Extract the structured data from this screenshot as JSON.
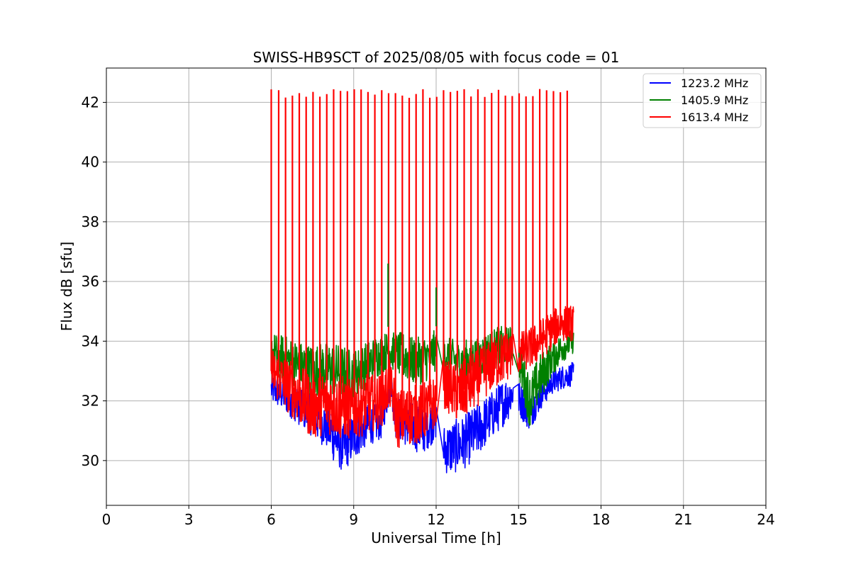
{
  "chart_data": {
    "type": "line",
    "title": "SWISS-HB9SCT of 2025/08/05 with focus code = 01",
    "xlabel": "Universal Time [h]",
    "ylabel": "Flux dB [sfu]",
    "xlim": [
      0,
      24
    ],
    "ylim": [
      28.5,
      43.15
    ],
    "xticks": [
      0,
      3,
      6,
      9,
      12,
      15,
      18,
      21,
      24
    ],
    "yticks": [
      30,
      32,
      34,
      36,
      38,
      40,
      42
    ],
    "grid": true,
    "legend_position": "top-right",
    "series": [
      {
        "name": "1223.2 MHz",
        "color": "#0000ff",
        "segments": [
          {
            "x": [
              6.0,
              6.5,
              7.0,
              7.5,
              8.0,
              8.3,
              8.6,
              9.0,
              9.5,
              10.0,
              10.3
            ],
            "mid": [
              32.4,
              32.2,
              31.8,
              31.5,
              31.2,
              30.8,
              30.4,
              30.8,
              31.2,
              31.3,
              32.4
            ],
            "noise": [
              0.5,
              0.6,
              0.6,
              0.7,
              0.8,
              0.9,
              0.8,
              0.8,
              0.7,
              0.6,
              0.5
            ]
          },
          {
            "x": [
              10.3,
              10.5,
              11.0,
              11.5,
              12.0
            ],
            "mid": [
              33.2,
              31.5,
              31.2,
              31.0,
              31.4
            ],
            "noise": [
              0.4,
              0.7,
              0.8,
              0.8,
              0.7
            ]
          },
          {
            "x": [
              12.25,
              12.5,
              13.0,
              13.5,
              14.0,
              14.5,
              14.8
            ],
            "mid": [
              30.4,
              30.4,
              30.6,
              31.0,
              31.5,
              32.0,
              32.3
            ],
            "noise": [
              0.8,
              0.9,
              0.9,
              0.9,
              0.8,
              0.8,
              0.7
            ]
          },
          {
            "x": [
              15.0,
              15.4,
              15.8,
              16.2,
              16.6,
              17.0
            ],
            "mid": [
              32.1,
              31.6,
              32.2,
              32.6,
              32.8,
              32.9
            ],
            "noise": [
              0.6,
              0.6,
              0.5,
              0.4,
              0.4,
              0.4
            ]
          }
        ]
      },
      {
        "name": "1405.9 MHz",
        "color": "#008000",
        "segments": [
          {
            "x": [
              6.0,
              6.5,
              7.0,
              7.5,
              8.0,
              8.5,
              9.0,
              9.5,
              10.0,
              10.3
            ],
            "mid": [
              33.6,
              33.4,
              33.2,
              33.0,
              33.1,
              33.0,
              32.9,
              33.2,
              33.6,
              33.7
            ],
            "noise": [
              0.7,
              0.8,
              0.8,
              0.9,
              0.9,
              0.9,
              0.8,
              0.8,
              0.7,
              0.6
            ]
          },
          {
            "x": [
              10.3,
              10.8,
              11.2,
              11.6,
              12.0
            ],
            "mid": [
              33.7,
              33.5,
              33.3,
              33.4,
              33.7
            ],
            "noise": [
              0.6,
              0.8,
              0.8,
              0.8,
              0.7
            ]
          },
          {
            "x": [
              12.25,
              12.8,
              13.3,
              13.8,
              14.3,
              14.8
            ],
            "mid": [
              33.6,
              33.3,
              33.4,
              33.6,
              33.8,
              33.9
            ],
            "noise": [
              0.6,
              0.7,
              0.7,
              0.7,
              0.7,
              0.6
            ]
          },
          {
            "x": [
              15.0,
              15.4,
              15.8,
              16.2,
              16.6,
              17.0
            ],
            "mid": [
              33.4,
              32.0,
              32.8,
              33.4,
              33.8,
              34.0
            ],
            "noise": [
              0.6,
              0.9,
              0.8,
              0.6,
              0.5,
              0.4
            ]
          }
        ]
      },
      {
        "name": "1613.4 MHz",
        "color": "#ff0000",
        "segments": [
          {
            "x": [
              6.0,
              6.5,
              7.0,
              7.5,
              8.0,
              8.5,
              9.0,
              9.5,
              10.0,
              10.3
            ],
            "mid": [
              33.0,
              32.6,
              32.2,
              31.8,
              32.0,
              31.8,
              31.7,
              31.9,
              32.0,
              32.6
            ],
            "noise": [
              0.8,
              0.9,
              1.0,
              1.1,
              1.1,
              1.1,
              1.0,
              1.0,
              0.9,
              0.8
            ]
          },
          {
            "x": [
              10.3,
              10.6,
              11.0,
              11.5,
              12.0
            ],
            "mid": [
              32.6,
              31.4,
              31.5,
              31.6,
              32.0
            ],
            "noise": [
              0.8,
              1.0,
              1.0,
              1.0,
              0.9
            ]
          },
          {
            "x": [
              12.25,
              12.8,
              13.3,
              13.8,
              14.3,
              14.8
            ],
            "mid": [
              32.6,
              32.2,
              32.6,
              33.0,
              33.4,
              33.6
            ],
            "noise": [
              0.8,
              1.0,
              1.0,
              0.9,
              0.9,
              0.8
            ]
          },
          {
            "x": [
              15.0,
              15.5,
              16.0,
              16.5,
              17.0
            ],
            "mid": [
              33.6,
              33.8,
              34.2,
              34.6,
              34.6
            ],
            "noise": [
              0.7,
              0.7,
              0.7,
              0.6,
              0.6
            ]
          }
        ],
        "spike_peak": 42.3,
        "spike_times": [
          6.0,
          6.27,
          6.52,
          6.77,
          7.02,
          7.27,
          7.52,
          7.77,
          8.02,
          8.27,
          8.52,
          8.77,
          9.02,
          9.27,
          9.52,
          9.77,
          10.02,
          10.27,
          10.52,
          10.77,
          11.02,
          11.27,
          11.52,
          11.77,
          12.02,
          12.27,
          12.52,
          12.77,
          13.02,
          13.27,
          13.52,
          13.77,
          14.02,
          14.27,
          14.52,
          14.77,
          15.02,
          15.27,
          15.52,
          15.77,
          16.02,
          16.27,
          16.52,
          16.77
        ]
      }
    ],
    "annotations": [
      {
        "series": "1405.9 MHz",
        "x": 10.25,
        "y": 36.6
      },
      {
        "series": "1405.9 MHz",
        "x": 12.0,
        "y": 35.8
      }
    ]
  }
}
